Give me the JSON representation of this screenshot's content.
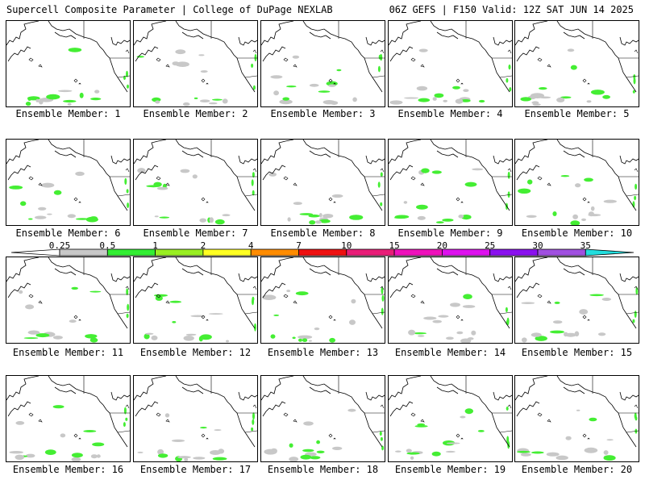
{
  "header": {
    "title_left": "Supercell Composite Parameter | College of DuPage NEXLAB",
    "title_right": "06Z GEFS | F150 Valid: 12Z SAT JUN 14 2025"
  },
  "panels": [
    {
      "label": "Ensemble Member: 1"
    },
    {
      "label": "Ensemble Member: 2"
    },
    {
      "label": "Ensemble Member: 3"
    },
    {
      "label": "Ensemble Member: 4"
    },
    {
      "label": "Ensemble Member: 5"
    },
    {
      "label": "Ensemble Member: 6"
    },
    {
      "label": "Ensemble Member: 7"
    },
    {
      "label": "Ensemble Member: 8"
    },
    {
      "label": "Ensemble Member: 9"
    },
    {
      "label": "Ensemble Member: 10"
    },
    {
      "label": "Ensemble Member: 11"
    },
    {
      "label": "Ensemble Member: 12"
    },
    {
      "label": "Ensemble Member: 13"
    },
    {
      "label": "Ensemble Member: 14"
    },
    {
      "label": "Ensemble Member: 15"
    },
    {
      "label": "Ensemble Member: 16"
    },
    {
      "label": "Ensemble Member: 17"
    },
    {
      "label": "Ensemble Member: 18"
    },
    {
      "label": "Ensemble Member: 19"
    },
    {
      "label": "Ensemble Member: 20"
    }
  ],
  "colorbar": {
    "ticks": [
      "0.25",
      "0.5",
      "1",
      "2",
      "4",
      "7",
      "10",
      "15",
      "20",
      "25",
      "30",
      "35"
    ],
    "colors": [
      "#c8c8c8",
      "#33ee33",
      "#99ee22",
      "#ffff22",
      "#ff8c00",
      "#ee1111",
      "#e81e78",
      "#ee11bb",
      "#dd11ee",
      "#8a11ee",
      "#a050e0",
      "#22dddd"
    ]
  }
}
